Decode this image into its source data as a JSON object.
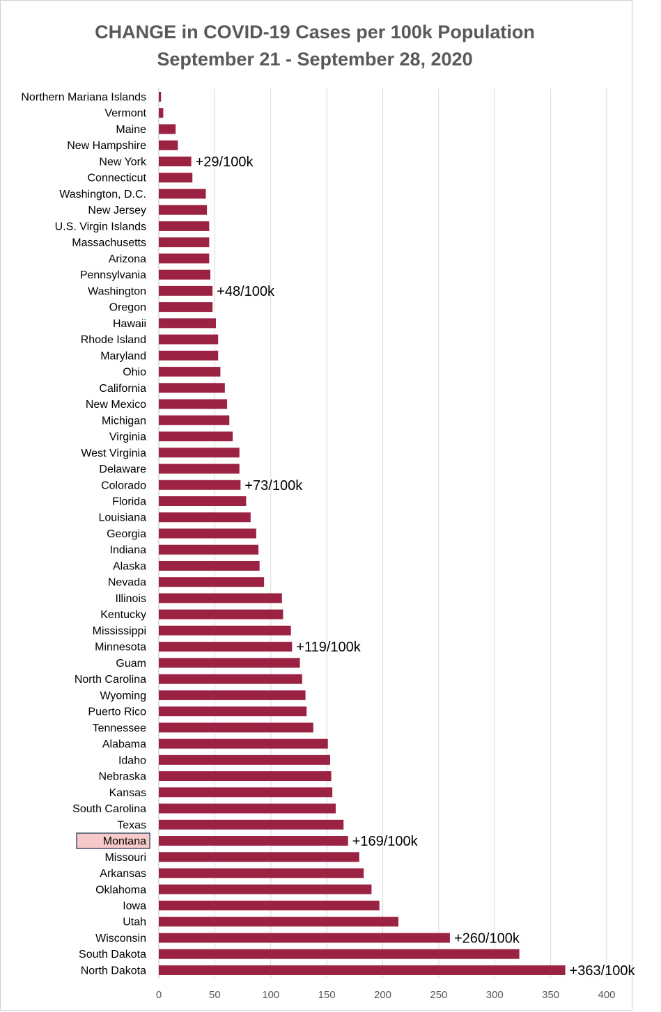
{
  "chart_data": {
    "type": "bar",
    "orientation": "horizontal",
    "title": "CHANGE in COVID-19 Cases per 100k Population",
    "subtitle": "September 21 - September 28, 2020",
    "xlim": [
      0,
      400
    ],
    "xticks": [
      0,
      50,
      100,
      150,
      200,
      250,
      300,
      350,
      400
    ],
    "grid": "vertical",
    "bar_color": "#9b2242",
    "highlight": {
      "category": "Montana",
      "fill": "#f8c9c9",
      "border": "#44546a"
    },
    "categories": [
      "Northern Mariana Islands",
      "Vermont",
      "Maine",
      "New Hampshire",
      "New York",
      "Connecticut",
      "Washington, D.C.",
      "New Jersey",
      "U.S. Virgin Islands",
      "Massachusetts",
      "Arizona",
      "Pennsylvania",
      "Washington",
      "Oregon",
      "Hawaii",
      "Rhode Island",
      "Maryland",
      "Ohio",
      "California",
      "New Mexico",
      "Michigan",
      "Virginia",
      "West Virginia",
      "Delaware",
      "Colorado",
      "Florida",
      "Louisiana",
      "Georgia",
      "Indiana",
      "Alaska",
      "Nevada",
      "Illinois",
      "Kentucky",
      "Mississippi",
      "Minnesota",
      "Guam",
      "North Carolina",
      "Wyoming",
      "Puerto Rico",
      "Tennessee",
      "Alabama",
      "Idaho",
      "Nebraska",
      "Kansas",
      "South Carolina",
      "Texas",
      "Montana",
      "Missouri",
      "Arkansas",
      "Oklahoma",
      "Iowa",
      "Utah",
      "Wisconsin",
      "South Dakota",
      "North Dakota"
    ],
    "values": [
      2,
      4,
      15,
      17,
      29,
      30,
      42,
      43,
      45,
      45,
      45,
      46,
      48,
      48,
      51,
      53,
      53,
      55,
      59,
      61,
      63,
      66,
      72,
      72,
      73,
      78,
      82,
      87,
      89,
      90,
      94,
      110,
      111,
      118,
      119,
      126,
      128,
      131,
      132,
      138,
      151,
      153,
      154,
      155,
      158,
      165,
      169,
      179,
      183,
      190,
      197,
      214,
      260,
      322,
      363
    ],
    "annotations": [
      {
        "category": "New York",
        "text": "+29/100k"
      },
      {
        "category": "Washington",
        "text": "+48/100k"
      },
      {
        "category": "Colorado",
        "text": "+73/100k"
      },
      {
        "category": "Minnesota",
        "text": "+119/100k"
      },
      {
        "category": "Montana",
        "text": "+169/100k"
      },
      {
        "category": "Wisconsin",
        "text": "+260/100k"
      },
      {
        "category": "North Dakota",
        "text": "+363/100k"
      }
    ]
  }
}
